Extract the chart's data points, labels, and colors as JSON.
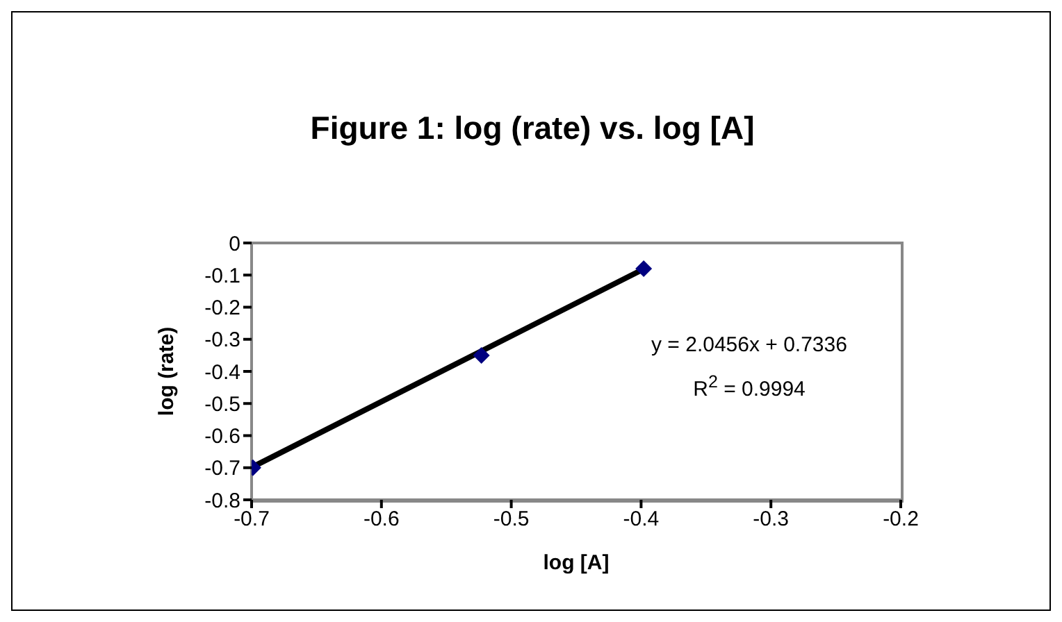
{
  "chart_data": {
    "type": "scatter",
    "title": "Figure 1: log (rate) vs. log [A]",
    "xlabel": "log [A]",
    "ylabel": "log (rate)",
    "annotations": [
      "y = 2.0456x + 0.7336",
      "R$^{2}$ = 0.9994"
    ],
    "series": [
      {
        "color": "#000080",
        "x": [
          -0.699,
          -0.523,
          -0.398
        ],
        "values": [
          -0.7,
          -0.35,
          -0.08
        ],
        "marker": "diamond"
      },
      {
        "type": "line",
        "color": "#000000",
        "x": [
          -0.699,
          -0.398
        ],
        "values": [
          -0.697,
          -0.081
        ],
        "marker": "none",
        "line_style": "solid"
      }
    ],
    "xlim": [
      -0.7,
      -0.2
    ],
    "xticks": [
      -0.7,
      -0.6,
      -0.5,
      -0.4,
      -0.3,
      -0.2
    ],
    "ylim": [
      -0.8,
      0
    ],
    "yticks": [
      -0.8,
      -0.7,
      -0.6,
      -0.5,
      -0.4,
      -0.3,
      -0.2,
      -0.1,
      0
    ],
    "grid": false,
    "legend": false
  }
}
